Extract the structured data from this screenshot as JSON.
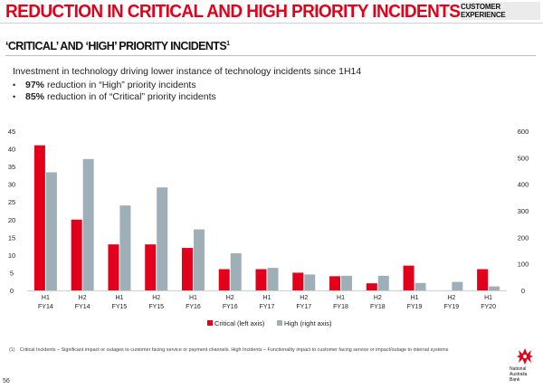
{
  "header": {
    "title": "REDUCTION IN CRITICAL AND HIGH PRIORITY INCIDENTS",
    "section_tag": "CUSTOMER EXPERIENCE"
  },
  "subheader": {
    "title": "‘CRITICAL’ AND ‘HIGH’ PRIORITY INCIDENTS",
    "footnote_ref": "1"
  },
  "intro_text": "Investment in technology driving lower instance of technology incidents since 1H14",
  "bullets": [
    {
      "bold": "97%",
      "text": "reduction in “High” priority incidents"
    },
    {
      "bold": "85%",
      "text": "reduction in of “Critical” priority incidents"
    }
  ],
  "chart_data": {
    "type": "bar",
    "categories": [
      [
        "H1",
        "FY14"
      ],
      [
        "H2",
        "FY14"
      ],
      [
        "H1",
        "FY15"
      ],
      [
        "H2",
        "FY15"
      ],
      [
        "H1",
        "FY16"
      ],
      [
        "H2",
        "FY16"
      ],
      [
        "H1",
        "FY17"
      ],
      [
        "H2",
        "FY17"
      ],
      [
        "H1",
        "FY18"
      ],
      [
        "H2",
        "FY18"
      ],
      [
        "H1",
        "FY19"
      ],
      [
        "H2",
        "FY19"
      ],
      [
        "H1",
        "FY20"
      ]
    ],
    "series": [
      {
        "name": "Critical (left axis)",
        "axis": "left",
        "color": "#e3001b",
        "values": [
          41,
          20,
          13,
          13,
          12,
          6,
          6,
          5,
          4,
          2,
          7,
          null,
          6
        ]
      },
      {
        "name": "High (right axis)",
        "axis": "right",
        "color": "#9fafb8",
        "values": [
          445,
          495,
          320,
          388,
          230,
          140,
          85,
          60,
          55,
          55,
          28,
          32,
          15
        ]
      }
    ],
    "left_axis": {
      "min": 0,
      "max": 45,
      "step": 5,
      "ticks": [
        "0",
        "5",
        "10",
        "15",
        "20",
        "25",
        "30",
        "35",
        "40",
        "45"
      ]
    },
    "right_axis": {
      "min": 0,
      "max": 600,
      "step": 100,
      "ticks": [
        "0",
        "100",
        "200",
        "300",
        "400",
        "500",
        "600"
      ]
    },
    "grid": false,
    "legend_position": "bottom-center"
  },
  "footnote": {
    "number": "(1)",
    "text": "Critical Incidents – Significant impact or outages to customer facing service or payment channels. High Incidents – Functionality impact to customer facing service or impact/outage to internal systems"
  },
  "page_number": "56",
  "logo": {
    "name": "star-logo-icon",
    "text": [
      "National",
      "Australia",
      "Bank"
    ],
    "color": "#e3001b"
  }
}
